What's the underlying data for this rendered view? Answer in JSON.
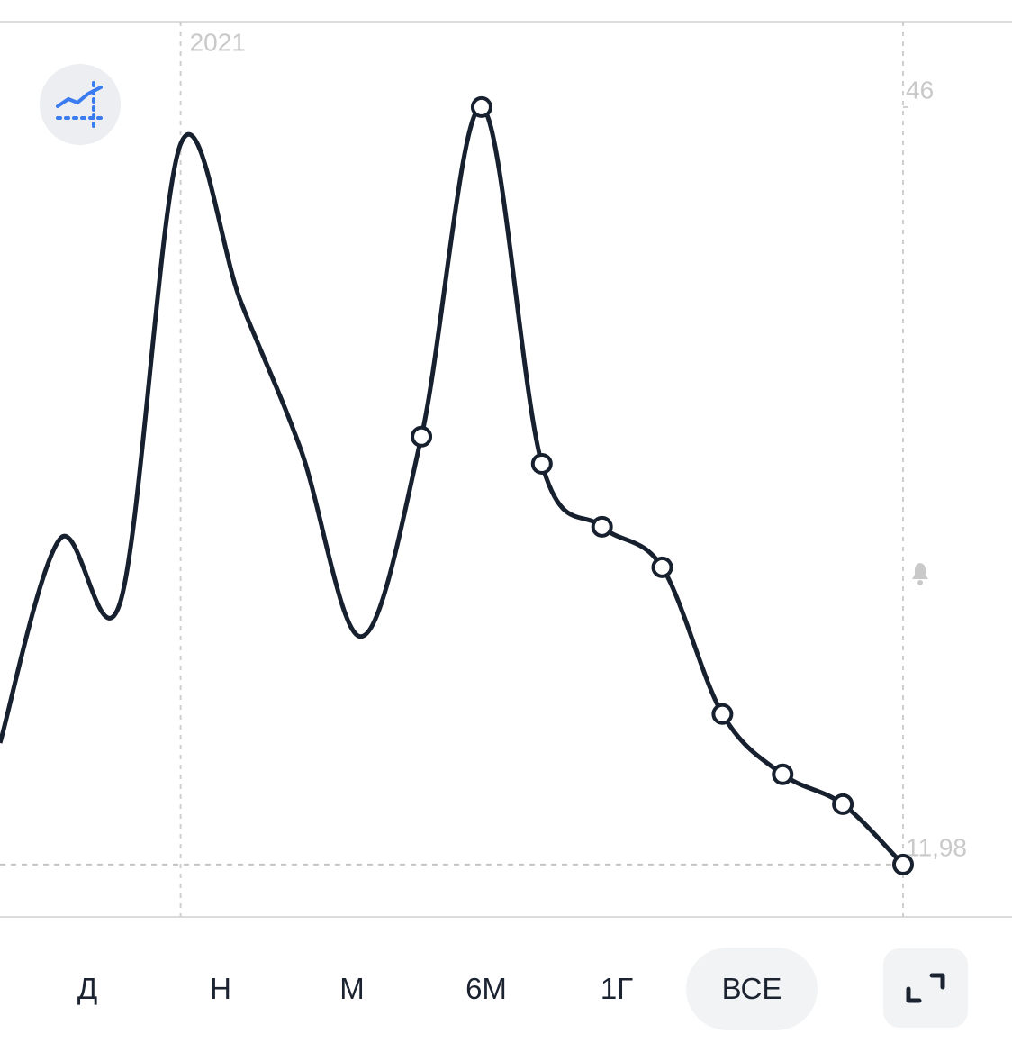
{
  "chart_data": {
    "type": "line",
    "categories": [
      null,
      null,
      null,
      "2021",
      null,
      null,
      null,
      null,
      null,
      null,
      null,
      null,
      null,
      null,
      null,
      null
    ],
    "values": [
      17.44,
      26.62,
      23.79,
      44.34,
      37.26,
      30.59,
      22.22,
      31.2,
      46.0,
      29.98,
      27.15,
      25.33,
      18.74,
      16.03,
      14.69,
      11.98
    ],
    "color": "#17202e",
    "ylim": [
      9.63,
      49.84
    ],
    "yticks": [
      46,
      {
        "value": 11.98,
        "label": "11,98"
      }
    ]
  },
  "periods": [
    "Д",
    "Н",
    "М",
    "6М",
    "1Г",
    "ВСЕ"
  ],
  "active_period": "ВСЕ"
}
